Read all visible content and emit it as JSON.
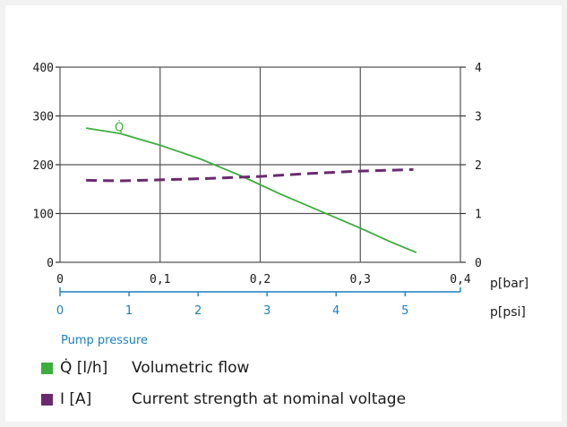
{
  "chart_data": {
    "type": "line",
    "x": [
      0.02,
      0.05,
      0.1,
      0.15,
      0.2,
      0.25,
      0.3,
      0.35
    ],
    "series": [
      {
        "name": "Q̇",
        "color": "#3cae3c",
        "axis": "left",
        "style": "solid",
        "x": [
          0.026,
          0.06,
          0.1,
          0.14,
          0.18,
          0.22,
          0.26,
          0.3,
          0.33,
          0.356
        ],
        "values": [
          275,
          264,
          240,
          212,
          178,
          140,
          105,
          70,
          42,
          20
        ]
      },
      {
        "name": "I",
        "color": "#6b2a6f",
        "axis": "right",
        "style": "dashed",
        "x": [
          0.026,
          0.06,
          0.1,
          0.15,
          0.2,
          0.25,
          0.3,
          0.353
        ],
        "values": [
          1.68,
          1.67,
          1.69,
          1.72,
          1.76,
          1.82,
          1.87,
          1.9
        ]
      }
    ],
    "x_axis_bar": {
      "ticks": [
        "0",
        "0,1",
        "0,2",
        "0,3",
        "0,4"
      ],
      "tick_values": [
        0,
        0.1,
        0.2,
        0.3,
        0.4
      ],
      "unit": "p[bar]",
      "range": [
        0,
        0.4
      ]
    },
    "x_axis_psi": {
      "ticks": [
        "0",
        "1",
        "2",
        "3",
        "4",
        "5"
      ],
      "tick_values": [
        0,
        1,
        2,
        3,
        4,
        5
      ],
      "unit": "p[psi]",
      "range": [
        0,
        5.8015
      ],
      "color": "#1a7fc1",
      "label": "Pump pressure"
    },
    "y_left": {
      "ticks": [
        "0",
        "100",
        "200",
        "300",
        "400"
      ],
      "tick_values": [
        0,
        100,
        200,
        300,
        400
      ],
      "range": [
        0,
        400
      ]
    },
    "y_right": {
      "ticks": [
        "0",
        "1",
        "2",
        "3",
        "4"
      ],
      "tick_values": [
        0,
        1,
        2,
        3,
        4
      ],
      "range": [
        0,
        4
      ]
    },
    "curve_label": "Q̇",
    "grid": true
  },
  "legend": [
    {
      "symbol": "Q̇ [l/h]",
      "text": "Volumetric flow",
      "color": "#3cae3c"
    },
    {
      "symbol": "I [A]",
      "text": "Current strength at nominal voltage",
      "color": "#6b2a6f"
    }
  ]
}
